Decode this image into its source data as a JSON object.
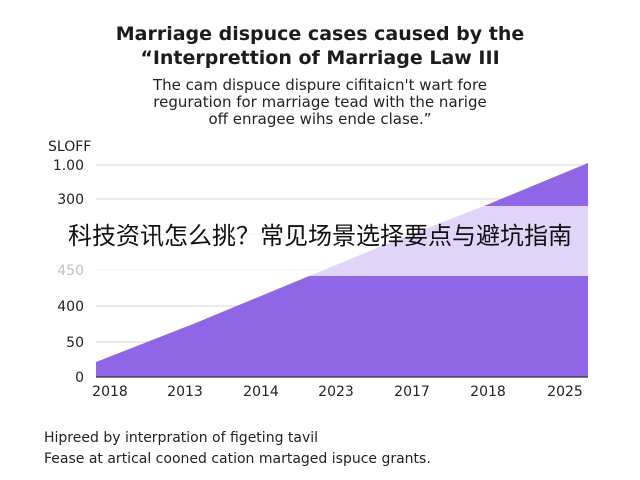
{
  "title": {
    "line1": "Marriage dispuce cases caused by the",
    "line2": "“Interprettion of Marriage Law III"
  },
  "subtitle": {
    "line1": "The cam dispuce dispure cifitaicn't wart fore",
    "line2": "reguration for marriage tead with the narige",
    "line3": "off enragee wihs ende clase.”"
  },
  "banner": {
    "text": "科技资讯怎么挑？常见场景选择要点与避坑指南"
  },
  "footer": {
    "line1": "Hipreed by interpration of figeting tavil",
    "line2": "Fease at artical cooned cation martaged ispuce grants."
  },
  "chart_data": {
    "type": "area",
    "ylabel": "SLOFF",
    "y_ticks": [
      "1.00",
      "300",
      "",
      "450",
      "400",
      "50",
      "0"
    ],
    "x_ticks": [
      "2018",
      "2013",
      "2014",
      "2023",
      "2017",
      "2018",
      "2025"
    ],
    "series": [
      {
        "values": [
          0.07,
          0.25,
          0.44,
          0.63,
          0.81,
          1.0
        ]
      }
    ],
    "ylim": [
      0,
      1
    ],
    "grid": "horizontal",
    "color": "#8f66e6"
  }
}
